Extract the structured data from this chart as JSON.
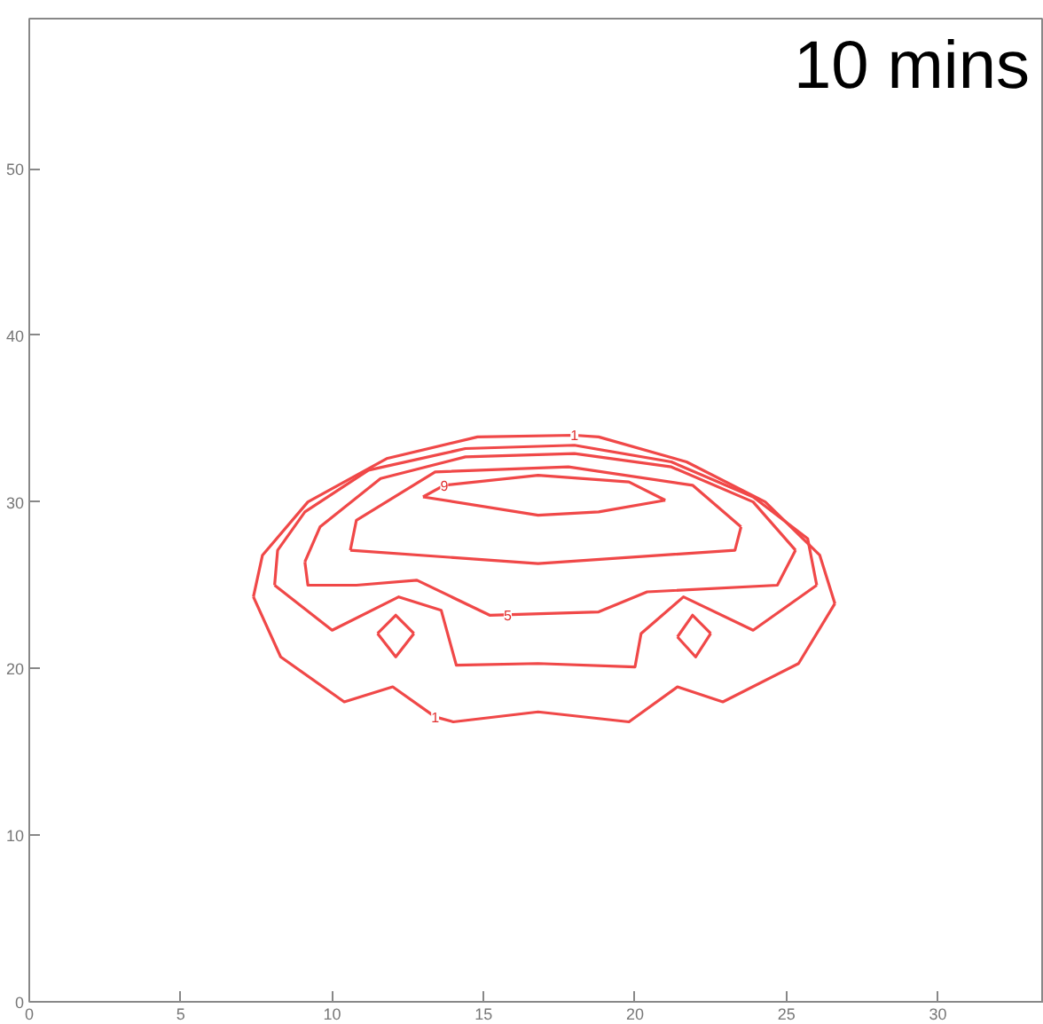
{
  "chart_data": {
    "type": "line",
    "xlim": [
      0,
      33.5
    ],
    "ylim": [
      0,
      59
    ],
    "xticks": [
      0,
      5,
      10,
      15,
      20,
      25,
      30
    ],
    "yticks": [
      0,
      10,
      20,
      30,
      40,
      50
    ],
    "grid": false,
    "marker": "none",
    "line_style": "solid",
    "annotations": [
      "10 mins",
      {
        "text": "1",
        "x": 18.0,
        "y": 34.0
      },
      {
        "text": "9",
        "x": 13.7,
        "y": 31.0
      },
      {
        "text": "5",
        "x": 15.8,
        "y": 23.2
      },
      {
        "text": "1",
        "x": 13.4,
        "y": 17.1
      }
    ],
    "series": [
      {
        "color": "#f04848",
        "x": [
          7.4,
          8.3,
          10.4,
          12.0,
          13.4,
          14.0,
          16.8,
          19.8,
          21.4,
          22.9,
          25.4,
          26.6
        ],
        "values": [
          24.3,
          20.7,
          18.0,
          18.9,
          17.1,
          16.8,
          17.4,
          16.8,
          18.9,
          18.0,
          20.3,
          23.9
        ]
      },
      {
        "color": "#f04848",
        "x": [
          7.4,
          7.7,
          9.2,
          11.8,
          14.8,
          18.0,
          18.8,
          21.7,
          24.3,
          26.1,
          26.6
        ],
        "values": [
          24.3,
          26.8,
          30.0,
          32.6,
          33.9,
          34.0,
          33.9,
          32.4,
          30.0,
          26.8,
          23.9
        ]
      },
      {
        "color": "#f04848",
        "x": [
          8.1,
          10.0,
          12.2,
          13.6,
          14.1,
          16.8,
          20.0,
          20.2,
          21.6,
          23.9,
          26.0
        ],
        "values": [
          25.0,
          22.3,
          24.3,
          23.5,
          20.2,
          20.3,
          20.1,
          22.1,
          24.3,
          22.3,
          25.0
        ]
      },
      {
        "color": "#f04848",
        "x": [
          8.1,
          8.2,
          9.1,
          11.2,
          14.4,
          18.0,
          21.2,
          23.9,
          25.7,
          26.0
        ],
        "values": [
          25.0,
          27.1,
          29.4,
          31.9,
          33.2,
          33.4,
          32.4,
          30.3,
          27.8,
          25.0
        ]
      },
      {
        "color": "#f04848",
        "x": [
          9.1,
          9.2,
          10.8,
          12.8,
          15.2,
          18.8,
          20.4,
          24.7,
          25.3
        ],
        "values": [
          26.4,
          25.0,
          25.0,
          25.3,
          23.2,
          23.4,
          24.6,
          25.0,
          27.1
        ]
      },
      {
        "color": "#f04848",
        "x": [
          9.1,
          9.6,
          11.6,
          14.4,
          18.0,
          21.2,
          23.9,
          25.3
        ],
        "values": [
          26.4,
          28.5,
          31.4,
          32.7,
          32.9,
          32.1,
          30.0,
          27.1
        ]
      },
      {
        "color": "#f04848",
        "x": [
          10.6,
          16.8,
          23.3,
          23.5
        ],
        "values": [
          27.1,
          26.3,
          27.1,
          28.5
        ]
      },
      {
        "color": "#f04848",
        "x": [
          10.6,
          10.8,
          13.4,
          17.8,
          21.9,
          23.5
        ],
        "values": [
          27.1,
          28.9,
          31.8,
          32.1,
          31.0,
          28.5
        ]
      },
      {
        "color": "#f04848",
        "x": [
          13.0,
          16.8,
          18.8,
          21.0
        ],
        "values": [
          30.3,
          29.2,
          29.4,
          30.1
        ]
      },
      {
        "color": "#f04848",
        "x": [
          13.0,
          13.7,
          16.8,
          19.8,
          21.0
        ],
        "values": [
          30.3,
          31.0,
          31.6,
          31.2,
          30.1
        ]
      },
      {
        "color": "#f04848",
        "x": [
          11.5,
          12.1,
          12.7
        ],
        "values": [
          22.1,
          20.7,
          22.1
        ]
      },
      {
        "color": "#f04848",
        "x": [
          11.5,
          12.1,
          12.7
        ],
        "values": [
          22.1,
          23.2,
          22.1
        ]
      },
      {
        "color": "#f04848",
        "x": [
          21.4,
          22.0,
          22.5
        ],
        "values": [
          21.9,
          20.7,
          22.1
        ]
      },
      {
        "color": "#f04848",
        "x": [
          21.4,
          21.9,
          22.5
        ],
        "values": [
          21.9,
          23.2,
          22.1
        ]
      }
    ]
  }
}
